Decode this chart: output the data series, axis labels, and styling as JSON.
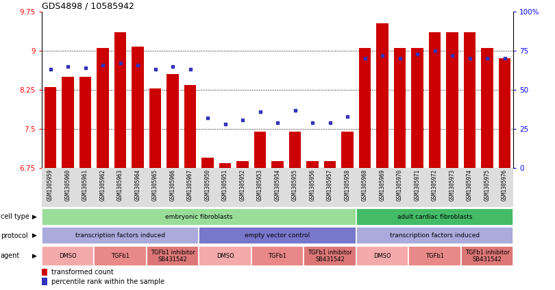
{
  "title": "GDS4898 / 10585942",
  "samples": [
    "GSM1305959",
    "GSM1305960",
    "GSM1305961",
    "GSM1305962",
    "GSM1305963",
    "GSM1305964",
    "GSM1305965",
    "GSM1305966",
    "GSM1305967",
    "GSM1305950",
    "GSM1305951",
    "GSM1305952",
    "GSM1305953",
    "GSM1305954",
    "GSM1305955",
    "GSM1305956",
    "GSM1305957",
    "GSM1305958",
    "GSM1305968",
    "GSM1305969",
    "GSM1305970",
    "GSM1305971",
    "GSM1305972",
    "GSM1305973",
    "GSM1305974",
    "GSM1305975",
    "GSM1305976"
  ],
  "red_values": [
    8.3,
    8.5,
    8.5,
    9.05,
    9.35,
    9.08,
    8.28,
    8.55,
    8.35,
    6.95,
    6.85,
    6.88,
    7.45,
    6.88,
    7.45,
    6.88,
    6.88,
    7.45,
    9.05,
    9.52,
    9.05,
    9.05,
    9.35,
    9.35,
    9.35,
    9.05,
    8.85
  ],
  "blue_values": [
    63,
    65,
    64,
    66,
    67,
    66,
    63,
    65,
    63,
    32,
    28,
    31,
    36,
    29,
    37,
    29,
    29,
    33,
    70,
    72,
    70,
    73,
    75,
    72,
    70,
    70,
    70
  ],
  "ylim_left": [
    6.75,
    9.75
  ],
  "ylim_right": [
    0,
    100
  ],
  "yticks_left": [
    6.75,
    7.5,
    8.25,
    9.0,
    9.75
  ],
  "yticks_left_labels": [
    "6.75",
    "7.5",
    "8.25",
    "9",
    "9.75"
  ],
  "yticks_right": [
    0,
    25,
    50,
    75,
    100
  ],
  "yticks_right_labels": [
    "0",
    "25",
    "50",
    "75",
    "100%"
  ],
  "bar_color": "#cc0000",
  "dot_color": "#3333bb",
  "bg_color": "#ffffff",
  "groups": {
    "cell_type": [
      {
        "label": "embryonic fibroblasts",
        "start": 0,
        "end": 18,
        "color": "#99dd99"
      },
      {
        "label": "adult cardiac fibroblasts",
        "start": 18,
        "end": 27,
        "color": "#44bb66"
      }
    ],
    "protocol": [
      {
        "label": "transcription factors induced",
        "start": 0,
        "end": 9,
        "color": "#aaaadd"
      },
      {
        "label": "empty vector control",
        "start": 9,
        "end": 18,
        "color": "#7777cc"
      },
      {
        "label": "transcription factors induced",
        "start": 18,
        "end": 27,
        "color": "#aaaadd"
      }
    ],
    "agent": [
      {
        "label": "DMSO",
        "start": 0,
        "end": 3,
        "color": "#f4aaaa"
      },
      {
        "label": "TGFb1",
        "start": 3,
        "end": 6,
        "color": "#e88888"
      },
      {
        "label": "TGFb1 inhibitor\nSB431542",
        "start": 6,
        "end": 9,
        "color": "#dd7777"
      },
      {
        "label": "DMSO",
        "start": 9,
        "end": 12,
        "color": "#f4aaaa"
      },
      {
        "label": "TGFb1",
        "start": 12,
        "end": 15,
        "color": "#e88888"
      },
      {
        "label": "TGFb1 inhibitor\nSB431542",
        "start": 15,
        "end": 18,
        "color": "#dd7777"
      },
      {
        "label": "DMSO",
        "start": 18,
        "end": 21,
        "color": "#f4aaaa"
      },
      {
        "label": "TGFb1",
        "start": 21,
        "end": 24,
        "color": "#e88888"
      },
      {
        "label": "TGFb1 inhibitor\nSB431542",
        "start": 24,
        "end": 27,
        "color": "#dd7777"
      }
    ]
  },
  "row_labels": [
    "cell type",
    "protocol",
    "agent"
  ],
  "row_keys": [
    "cell_type",
    "protocol",
    "agent"
  ]
}
